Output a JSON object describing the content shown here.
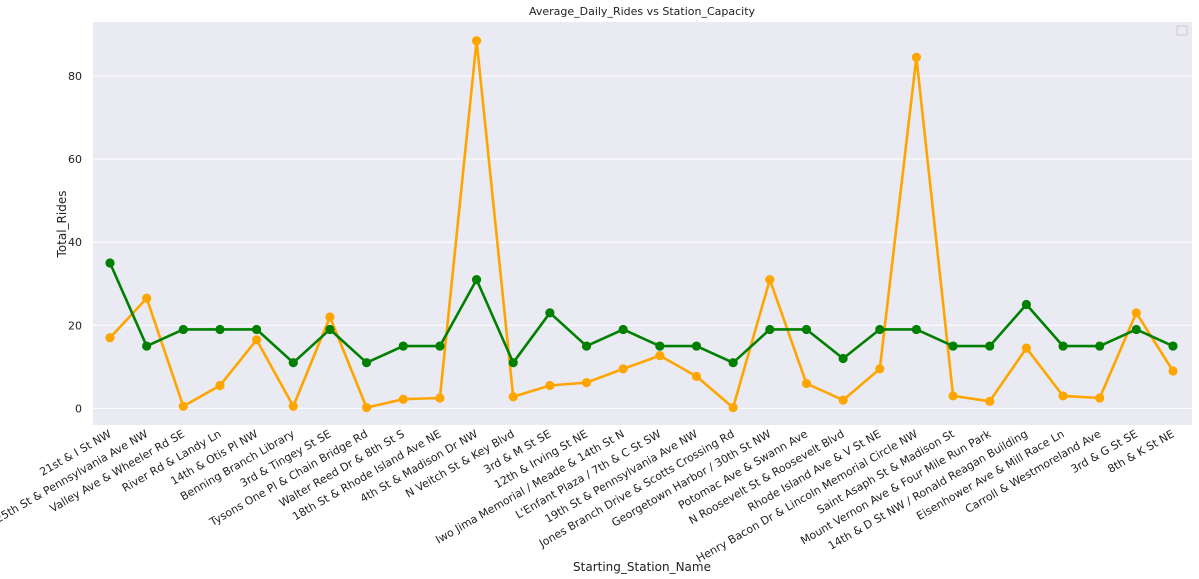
{
  "chart_data": {
    "type": "line",
    "title": "Average_Daily_Rides vs Station_Capacity",
    "xlabel": "Starting_Station_Name",
    "ylabel": "Total_Rides",
    "ylim": [
      -4,
      93
    ],
    "yticks": [
      0,
      20,
      40,
      60,
      80
    ],
    "grid": true,
    "legend": "top-right",
    "categories": [
      "21st & I St NW",
      "25th St & Pennsylvania Ave NW",
      "Valley Ave & Wheeler Rd SE",
      "River Rd & Landy Ln",
      "14th & Otis Pl NW",
      "Benning Branch Library",
      "3rd & Tingey St SE",
      "Tysons One Pl & Chain Bridge Rd",
      "Walter Reed Dr & 8th St S",
      "18th St & Rhode Island Ave NE",
      "4th St & Madison Dr NW",
      "N Veitch St & Key Blvd",
      "3rd & M St SE",
      "12th & Irving St NE",
      "Iwo Jima Memorial / Meade & 14th St N",
      "L'Enfant Plaza / 7th & C St SW",
      "19th St & Pennsylvania Ave NW",
      "Jones Branch Drive & Scotts Crossing Rd",
      "Georgetown Harbor / 30th St NW",
      "Potomac Ave & Swann Ave",
      "N Roosevelt St & Roosevelt Blvd",
      "Rhode Island Ave & V St NE",
      "Henry Bacon Dr & Lincoln Memorial Circle NW",
      "Saint Asaph St & Madison St",
      "Mount Vernon Ave & Four Mile Run Park",
      "14th & D St NW / Ronald Reagan Building",
      "Eisenhower Ave & Mill Race Ln",
      "Carroll & Westmoreland Ave",
      "3rd & G St SE",
      "8th & K St NE"
    ],
    "series": [
      {
        "color": "#ffa500",
        "values": [
          17,
          26.5,
          0.5,
          5.5,
          16.5,
          0.5,
          22,
          0.2,
          2.2,
          2.5,
          88.5,
          2.8,
          5.5,
          6.2,
          9.5,
          12.7,
          7.7,
          0.2,
          31,
          6,
          2,
          9.5,
          84.5,
          3,
          1.7,
          14.5,
          3,
          2.5,
          23,
          9
        ]
      },
      {
        "color": "#008000",
        "values": [
          35,
          15,
          19,
          19,
          19,
          11,
          19,
          11,
          15,
          15,
          31,
          11,
          23,
          15,
          19,
          15,
          15,
          11,
          19,
          19,
          12,
          19,
          19,
          15,
          15,
          25,
          15,
          15,
          19,
          15
        ]
      }
    ]
  }
}
